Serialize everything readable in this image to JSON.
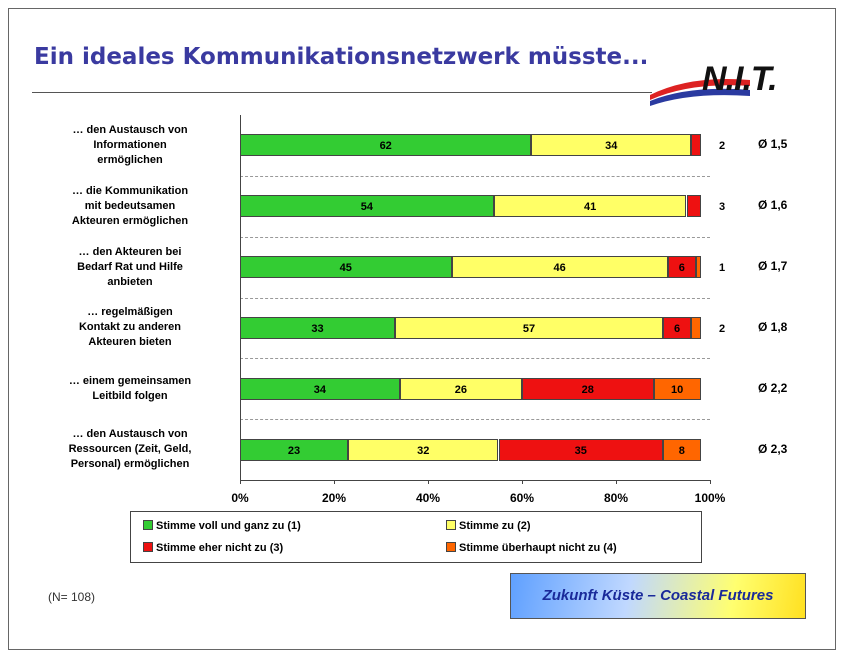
{
  "header": {
    "title": "Ein ideales Kommunikationsnetzwerk müsste...",
    "logo": "N.I.T."
  },
  "chart_data": {
    "type": "stacked-barh",
    "categories": [
      "… den Austausch von\nInformationen\nermöglichen",
      "… die Kommunikation\nmit bedeutsamen\nAkteuren ermöglichen",
      "… den Akteuren bei\nBedarf Rat und Hilfe\nanbieten",
      "… regelmäßigen\nKontakt zu anderen\nAkteuren bieten",
      "… einem gemeinsamen\nLeitbild folgen",
      "… den Austausch von\nRessourcen (Zeit, Geld,\nPersonal) ermöglichen"
    ],
    "series": [
      {
        "name": "Stimme voll und ganz zu (1)",
        "color": "#33cc33",
        "values": [
          62,
          54,
          45,
          33,
          34,
          23
        ]
      },
      {
        "name": "Stimme zu (2)",
        "color": "#ffff66",
        "values": [
          34,
          41,
          46,
          57,
          26,
          32
        ]
      },
      {
        "name": "Stimme eher nicht zu (3)",
        "color": "#ee1111",
        "values": [
          2,
          3,
          6,
          6,
          28,
          35
        ]
      },
      {
        "name": "Stimme überhaupt nicht zu (4)",
        "color": "#ff6600",
        "values": [
          null,
          null,
          1,
          2,
          10,
          8
        ]
      }
    ],
    "averages": [
      "Ø 1,5",
      "Ø 1,6",
      "Ø 1,7",
      "Ø 1,8",
      "Ø 2,2",
      "Ø 2,3"
    ],
    "xlim": [
      0,
      100
    ],
    "xticks": [
      {
        "value": 0,
        "label": "0%"
      },
      {
        "value": 20,
        "label": "20%"
      },
      {
        "value": 40,
        "label": "40%"
      },
      {
        "value": 60,
        "label": "60%"
      },
      {
        "value": 80,
        "label": "80%"
      },
      {
        "value": 100,
        "label": "100%"
      }
    ],
    "grid": true
  },
  "footer": {
    "sample": "(N= 108)",
    "project": "Zukunft Küste – Coastal Futures"
  }
}
